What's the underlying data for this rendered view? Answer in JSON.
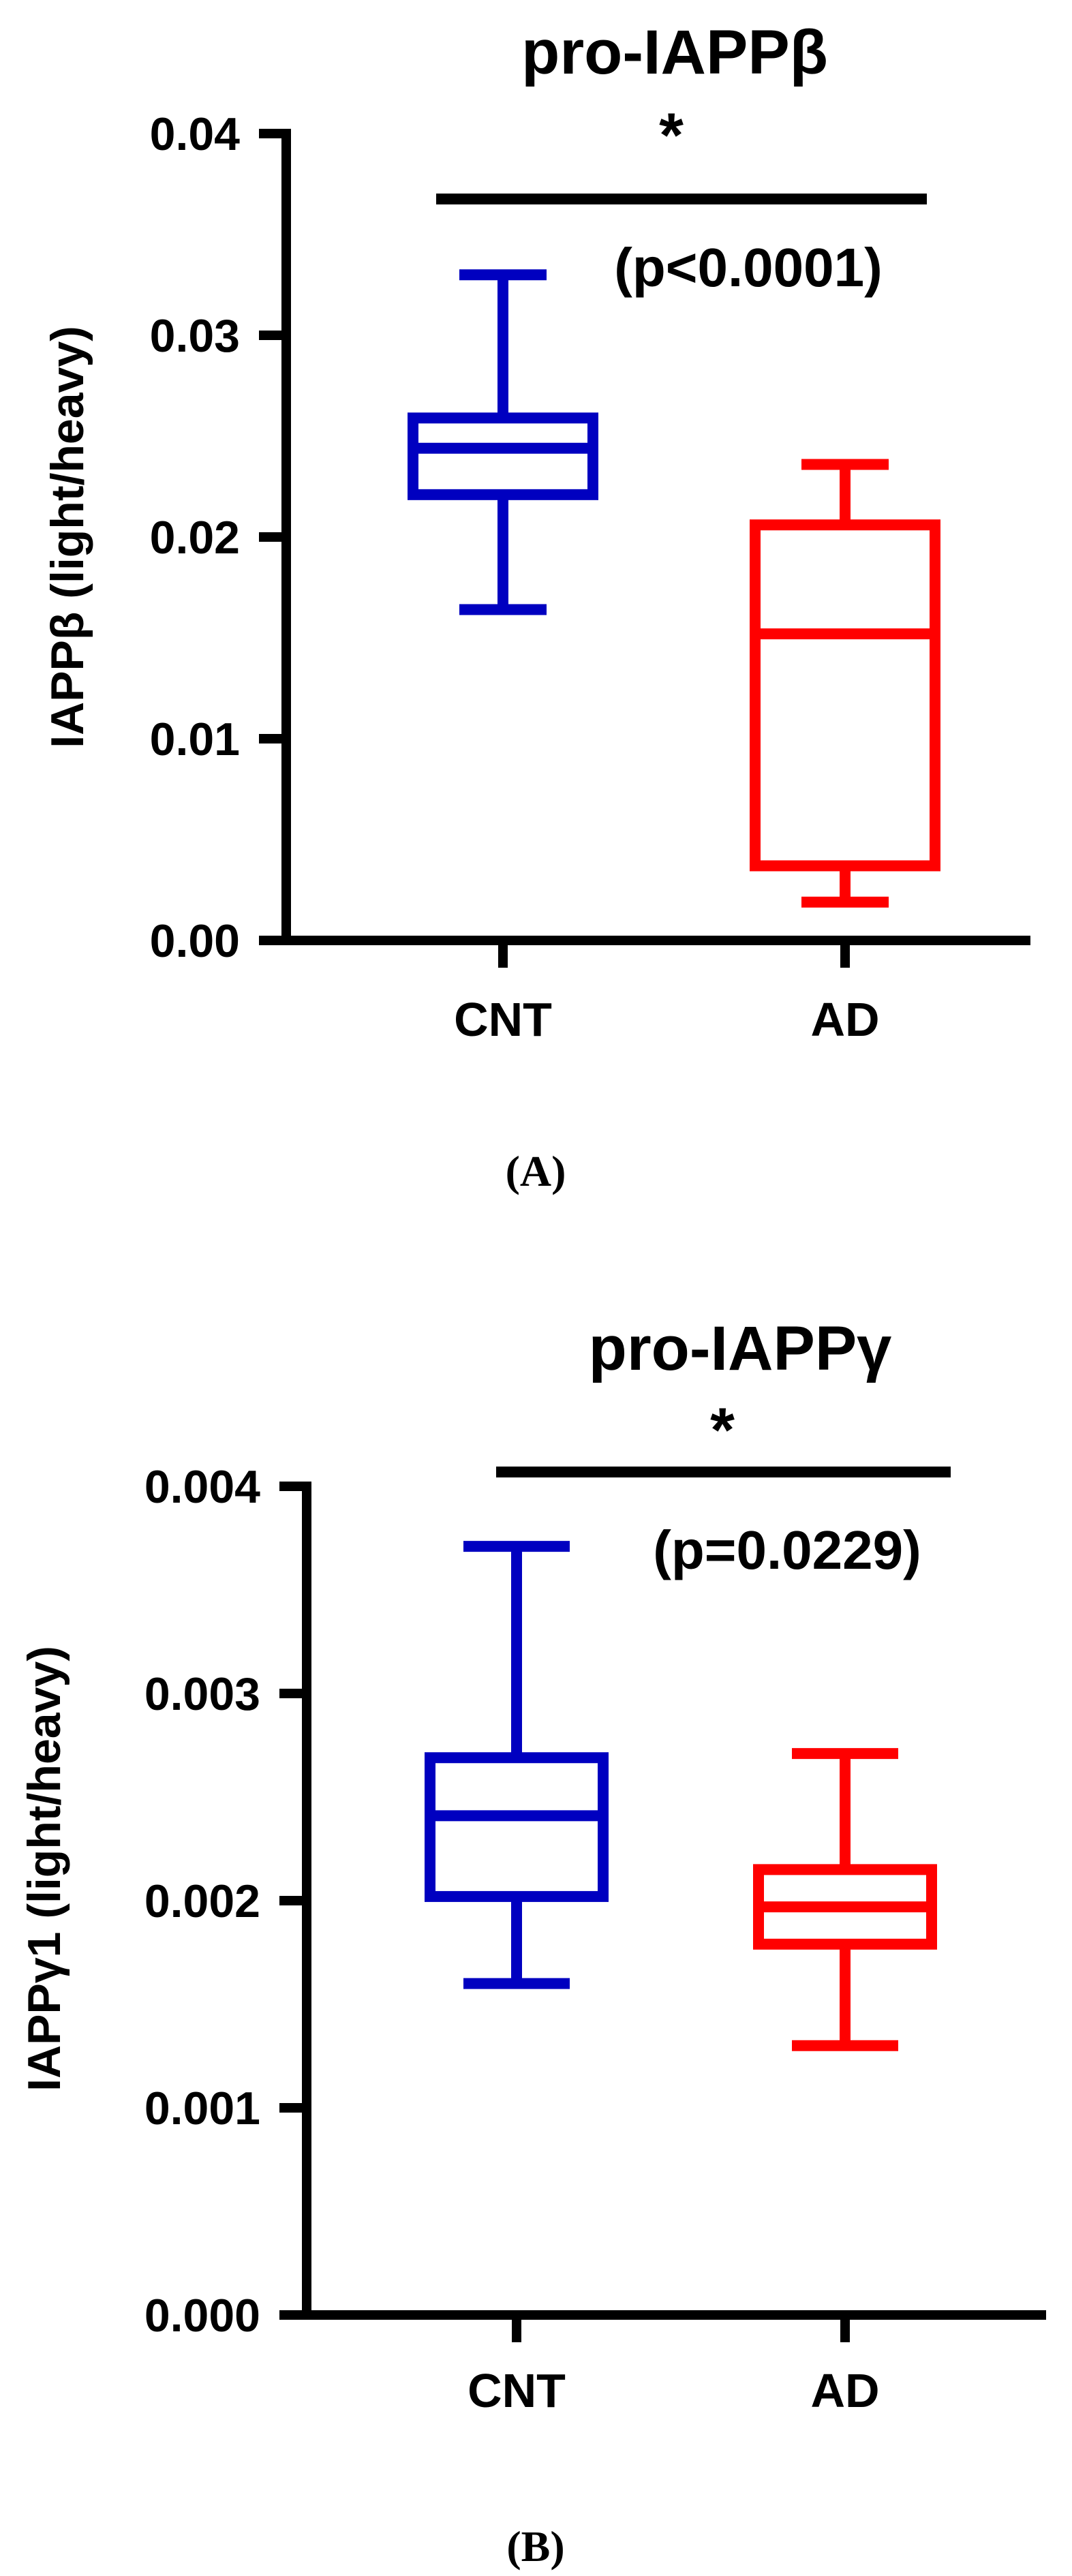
{
  "panels": [
    {
      "caption": "(A)",
      "signif_star": "*",
      "p_text": "(p<0.0001)"
    },
    {
      "caption": "(B)",
      "signif_star": "*",
      "p_text": "(p=0.0229)"
    }
  ],
  "chart_data": [
    {
      "type": "box",
      "title": "pro-IAPPβ",
      "ylabel": "IAPPβ (light/heavy)",
      "xlabel": "",
      "categories": [
        "CNT",
        "AD"
      ],
      "ylim": [
        0,
        0.04
      ],
      "yticks": [
        0.0,
        0.01,
        0.02,
        0.03,
        0.04
      ],
      "ytick_labels": [
        "0.00",
        "0.01",
        "0.02",
        "0.03",
        "0.04"
      ],
      "colors": [
        "#0000c0",
        "#ff0000"
      ],
      "boxes": [
        {
          "name": "CNT",
          "min": 0.0164,
          "q1": 0.0221,
          "median": 0.0244,
          "q3": 0.0259,
          "max": 0.033
        },
        {
          "name": "AD",
          "min": 0.0019,
          "q1": 0.0037,
          "median": 0.0152,
          "q3": 0.0206,
          "max": 0.0236
        }
      ],
      "significance": {
        "between": [
          "CNT",
          "AD"
        ],
        "label": "*",
        "p": "p<0.0001"
      }
    },
    {
      "type": "box",
      "title": "pro-IAPPγ",
      "ylabel": "IAPPγ1 (light/heavy)",
      "xlabel": "",
      "categories": [
        "CNT",
        "AD"
      ],
      "ylim": [
        0,
        0.004
      ],
      "yticks": [
        0.0,
        0.001,
        0.002,
        0.003,
        0.004
      ],
      "ytick_labels": [
        "0.000",
        "0.001",
        "0.002",
        "0.003",
        "0.004"
      ],
      "colors": [
        "#0000c0",
        "#ff0000"
      ],
      "boxes": [
        {
          "name": "CNT",
          "min": 0.0016,
          "q1": 0.00202,
          "median": 0.00241,
          "q3": 0.00269,
          "max": 0.00371
        },
        {
          "name": "AD",
          "min": 0.0013,
          "q1": 0.00179,
          "median": 0.00197,
          "q3": 0.00215,
          "max": 0.00271
        }
      ],
      "significance": {
        "between": [
          "CNT",
          "AD"
        ],
        "label": "*",
        "p": "p=0.0229"
      }
    }
  ]
}
